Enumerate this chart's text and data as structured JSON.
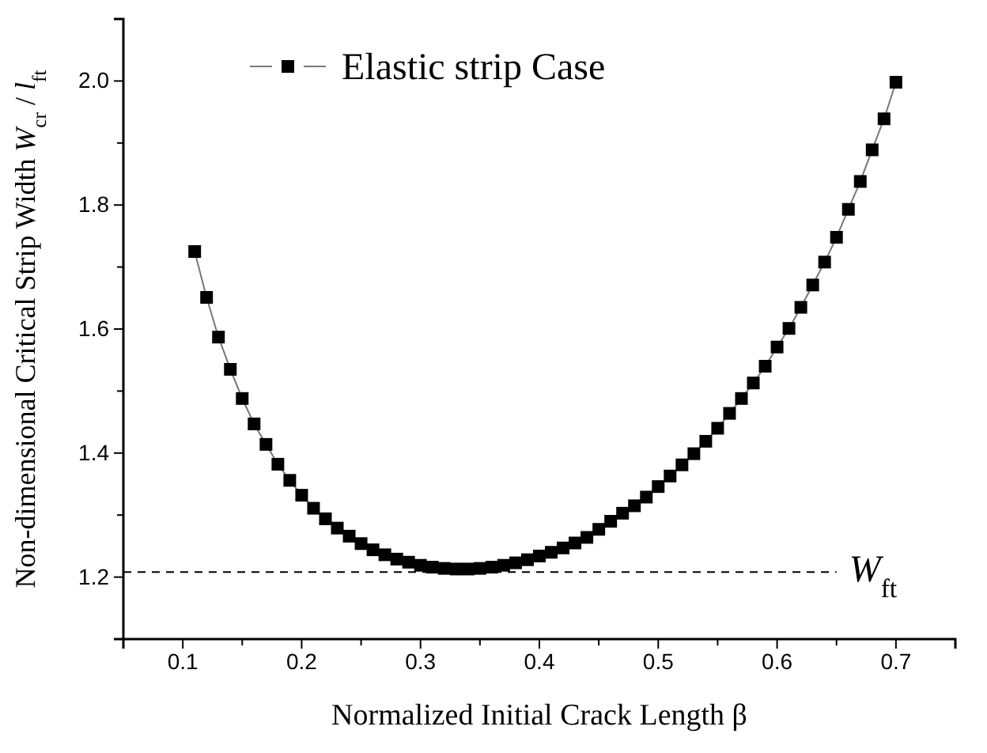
{
  "chart_data": {
    "type": "line",
    "xlabel": "Normalized Initial Crack Length β",
    "ylabel": "Non-dimensional Critical Strip Width W$_{cr}$ / l$_{ft}$",
    "x": [
      0.11,
      0.12,
      0.13,
      0.14,
      0.15,
      0.16,
      0.17,
      0.18,
      0.19,
      0.2,
      0.21,
      0.22,
      0.23,
      0.24,
      0.25,
      0.26,
      0.27,
      0.28,
      0.29,
      0.3,
      0.31,
      0.32,
      0.33,
      0.34,
      0.35,
      0.36,
      0.37,
      0.38,
      0.39,
      0.4,
      0.41,
      0.42,
      0.43,
      0.44,
      0.45,
      0.46,
      0.47,
      0.48,
      0.49,
      0.5,
      0.51,
      0.52,
      0.53,
      0.54,
      0.55,
      0.56,
      0.57,
      0.58,
      0.59,
      0.6,
      0.61,
      0.62,
      0.63,
      0.64,
      0.65,
      0.66,
      0.67,
      0.68,
      0.69,
      0.7
    ],
    "series": [
      {
        "name": "Elastic strip Case",
        "color": "#000000",
        "values": [
          1.725,
          1.651,
          1.587,
          1.535,
          1.488,
          1.447,
          1.414,
          1.382,
          1.356,
          1.332,
          1.311,
          1.294,
          1.279,
          1.266,
          1.254,
          1.244,
          1.236,
          1.229,
          1.224,
          1.219,
          1.216,
          1.214,
          1.213,
          1.213,
          1.214,
          1.216,
          1.219,
          1.223,
          1.228,
          1.234,
          1.24,
          1.247,
          1.255,
          1.264,
          1.277,
          1.29,
          1.303,
          1.315,
          1.329,
          1.346,
          1.363,
          1.381,
          1.399,
          1.419,
          1.44,
          1.464,
          1.488,
          1.513,
          1.54,
          1.571,
          1.601,
          1.635,
          1.671,
          1.708,
          1.748,
          1.793,
          1.838,
          1.889,
          1.939,
          1.998
        ]
      }
    ],
    "xlim": [
      0.05,
      0.75
    ],
    "ylim": [
      1.1,
      2.1
    ],
    "xticks": [
      {
        "value": 0.05,
        "label": null
      },
      0.1,
      {
        "value": 0.15,
        "label": null
      },
      0.2,
      {
        "value": 0.25,
        "label": null
      },
      0.3,
      {
        "value": 0.35,
        "label": null
      },
      0.4,
      {
        "value": 0.45,
        "label": null
      },
      0.5,
      {
        "value": 0.55,
        "label": null
      },
      0.6,
      {
        "value": 0.65,
        "label": null
      },
      0.7,
      {
        "value": 0.75,
        "label": null
      }
    ],
    "yticks": [
      {
        "value": 1.1,
        "label": null
      },
      1.2,
      {
        "value": 1.3,
        "label": null
      },
      1.4,
      {
        "value": 1.5,
        "label": null
      },
      1.6,
      {
        "value": 1.7,
        "label": null
      },
      1.8,
      {
        "value": 1.9,
        "label": null
      },
      {
        "value": 2,
        "label": "2.0"
      },
      {
        "value": 2.1,
        "label": null
      }
    ],
    "ref_lines": [
      {
        "axis": "y",
        "value": 1.208,
        "label": "W$_{ft}$",
        "color": "#000000",
        "line_style": "dashed"
      }
    ],
    "legend": "top left",
    "marker": "square",
    "line_style": "solid",
    "grid": false
  }
}
